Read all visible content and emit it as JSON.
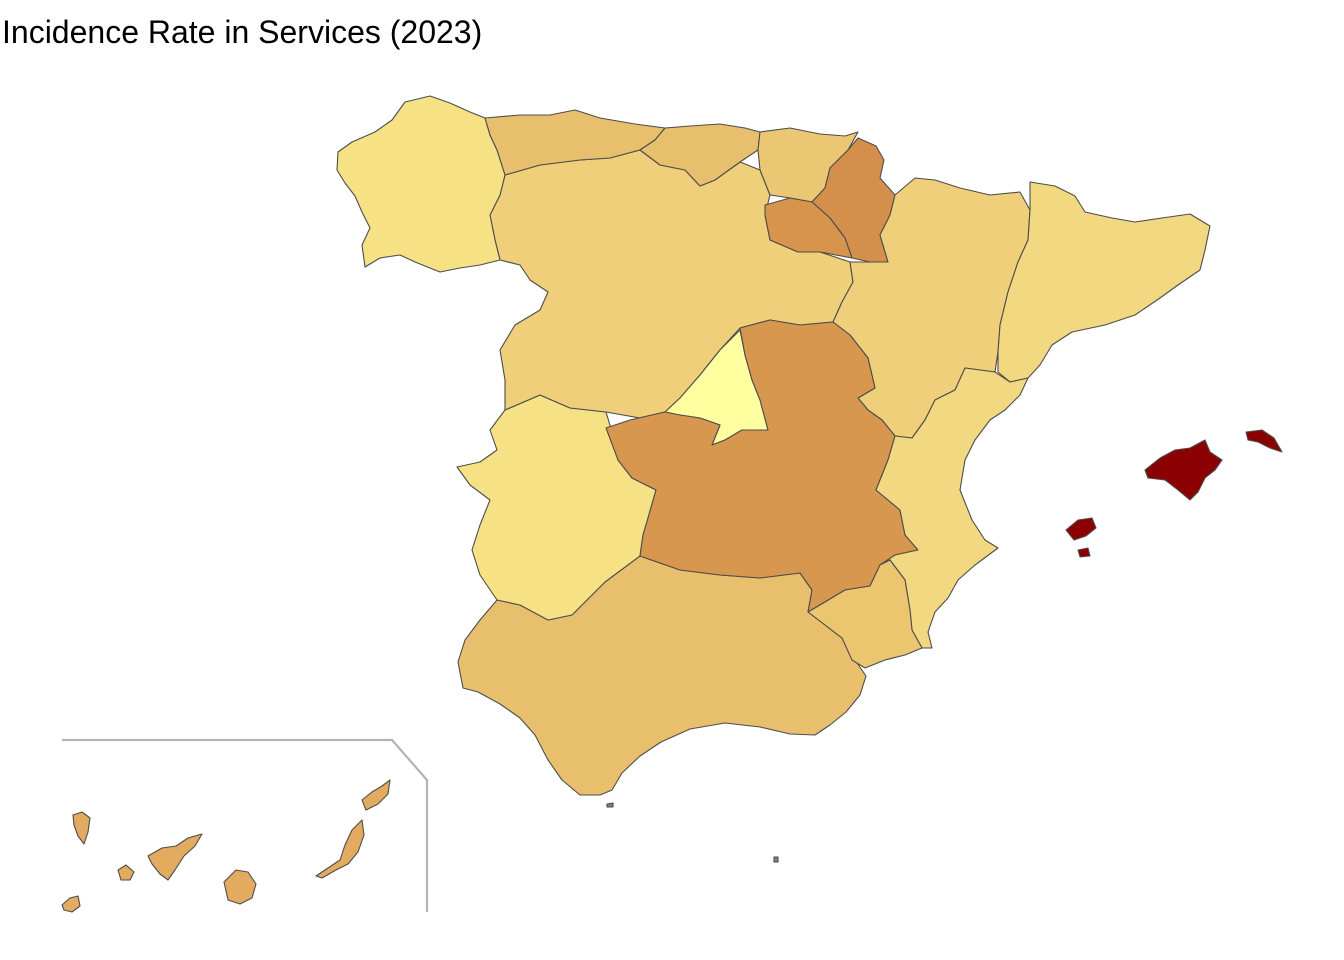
{
  "title": "Incidence Rate in Services (2023)",
  "colors": {
    "galicia": "#f6e285",
    "asturias": "#e8c06d",
    "cantabria": "#e8c06d",
    "pais_vasco": "#ebc673",
    "navarra": "#d58f4c",
    "la_rioja": "#d7944d",
    "castilla_leon": "#efcf79",
    "aragon": "#efcf79",
    "cataluna": "#f2d880",
    "madrid": "#ffff9f",
    "castilla_la_mancha": "#d7974e",
    "extremadura": "#f6e285",
    "comunitat_valenciana": "#f2d880",
    "murcia": "#ebc66f",
    "andalucia": "#e8c06d",
    "baleares": "#8b0000",
    "canarias": "#e3ab60",
    "ceuta_melilla": "#808080",
    "border": "#4d4d4d",
    "inset_frame": "#b3b3b3"
  }
}
